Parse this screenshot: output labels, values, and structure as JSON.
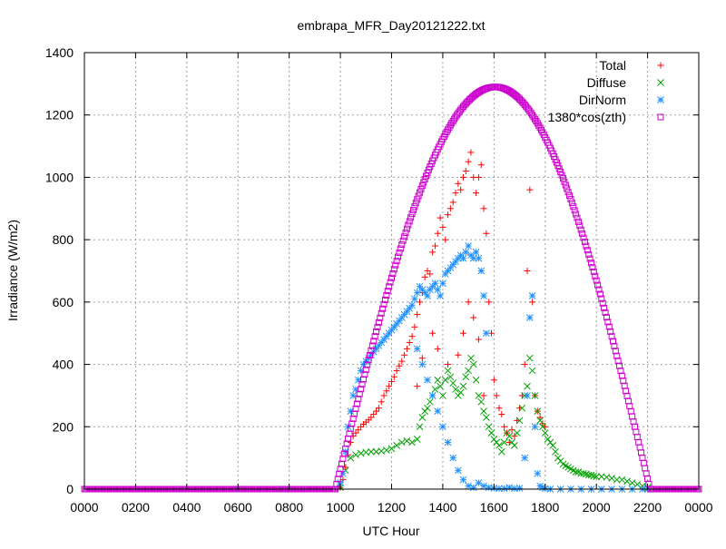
{
  "chart_data": {
    "type": "scatter",
    "title": "embrapa_MFR_Day20121222.txt",
    "xlabel": "UTC Hour",
    "ylabel": "Irradiance (W/m2)",
    "xlim": [
      0,
      2400
    ],
    "ylim": [
      0,
      1400
    ],
    "x_ticks": [
      "0000",
      "0200",
      "0400",
      "0600",
      "0800",
      "1000",
      "1200",
      "1400",
      "1600",
      "1800",
      "2000",
      "2200",
      "0000"
    ],
    "y_ticks": [
      "0",
      "200",
      "400",
      "600",
      "800",
      "1000",
      "1200",
      "1400"
    ],
    "grid": true,
    "legend_position": "top-right",
    "series": [
      {
        "name": "Total",
        "marker": "plus",
        "color": "#ff0000",
        "points": [
          [
            1000,
            5
          ],
          [
            1010,
            30
          ],
          [
            1020,
            70
          ],
          [
            1030,
            110
          ],
          [
            1040,
            150
          ],
          [
            1050,
            170
          ],
          [
            1060,
            180
          ],
          [
            1070,
            190
          ],
          [
            1080,
            200
          ],
          [
            1090,
            208
          ],
          [
            1100,
            215
          ],
          [
            1110,
            222
          ],
          [
            1120,
            230
          ],
          [
            1130,
            240
          ],
          [
            1140,
            250
          ],
          [
            1150,
            260
          ],
          [
            1160,
            280
          ],
          [
            1170,
            300
          ],
          [
            1180,
            315
          ],
          [
            1190,
            330
          ],
          [
            1200,
            345
          ],
          [
            1210,
            360
          ],
          [
            1220,
            380
          ],
          [
            1230,
            395
          ],
          [
            1240,
            410
          ],
          [
            1250,
            430
          ],
          [
            1260,
            450
          ],
          [
            1270,
            470
          ],
          [
            1280,
            490
          ],
          [
            1290,
            520
          ],
          [
            1300,
            560
          ],
          [
            1310,
            600
          ],
          [
            1320,
            630
          ],
          [
            1330,
            680
          ],
          [
            1340,
            700
          ],
          [
            1350,
            690
          ],
          [
            1360,
            760
          ],
          [
            1370,
            780
          ],
          [
            1380,
            820
          ],
          [
            1390,
            870
          ],
          [
            1400,
            840
          ],
          [
            1410,
            800
          ],
          [
            1420,
            880
          ],
          [
            1430,
            900
          ],
          [
            1440,
            920
          ],
          [
            1450,
            950
          ],
          [
            1460,
            980
          ],
          [
            1470,
            960
          ],
          [
            1480,
            1000
          ],
          [
            1490,
            1020
          ],
          [
            1500,
            1050
          ],
          [
            1510,
            1080
          ],
          [
            1520,
            1000
          ],
          [
            1530,
            950
          ],
          [
            1540,
            1000
          ],
          [
            1550,
            1040
          ],
          [
            1560,
            900
          ],
          [
            1570,
            820
          ],
          [
            1580,
            600
          ],
          [
            1590,
            500
          ],
          [
            1600,
            350
          ],
          [
            1610,
            300
          ],
          [
            1620,
            260
          ],
          [
            1630,
            240
          ],
          [
            1640,
            200
          ],
          [
            1650,
            180
          ],
          [
            1660,
            150
          ],
          [
            1670,
            190
          ],
          [
            1680,
            170
          ],
          [
            1690,
            220
          ],
          [
            1700,
            260
          ],
          [
            1710,
            300
          ],
          [
            1720,
            400
          ],
          [
            1730,
            700
          ],
          [
            1740,
            960
          ],
          [
            1750,
            600
          ],
          [
            1760,
            300
          ],
          [
            1770,
            250
          ],
          [
            1780,
            230
          ],
          [
            1790,
            210
          ],
          [
            1800,
            200
          ],
          [
            1300,
            330
          ],
          [
            1320,
            420
          ],
          [
            1360,
            500
          ],
          [
            1380,
            450
          ],
          [
            1420,
            400
          ],
          [
            1460,
            430
          ],
          [
            1480,
            500
          ],
          [
            1500,
            600
          ],
          [
            1520,
            550
          ],
          [
            1540,
            480
          ],
          [
            1560,
            300
          ]
        ]
      },
      {
        "name": "Diffuse",
        "marker": "cross",
        "color": "#00a000",
        "points": [
          [
            1000,
            5
          ],
          [
            1020,
            60
          ],
          [
            1040,
            100
          ],
          [
            1060,
            110
          ],
          [
            1080,
            115
          ],
          [
            1100,
            118
          ],
          [
            1120,
            120
          ],
          [
            1140,
            120
          ],
          [
            1160,
            122
          ],
          [
            1180,
            125
          ],
          [
            1200,
            130
          ],
          [
            1220,
            140
          ],
          [
            1240,
            150
          ],
          [
            1260,
            155
          ],
          [
            1280,
            150
          ],
          [
            1300,
            160
          ],
          [
            1310,
            200
          ],
          [
            1320,
            230
          ],
          [
            1330,
            250
          ],
          [
            1340,
            260
          ],
          [
            1350,
            280
          ],
          [
            1360,
            300
          ],
          [
            1370,
            320
          ],
          [
            1380,
            350
          ],
          [
            1390,
            330
          ],
          [
            1400,
            300
          ],
          [
            1410,
            350
          ],
          [
            1420,
            380
          ],
          [
            1430,
            360
          ],
          [
            1440,
            340
          ],
          [
            1450,
            320
          ],
          [
            1460,
            300
          ],
          [
            1470,
            310
          ],
          [
            1480,
            330
          ],
          [
            1490,
            360
          ],
          [
            1500,
            380
          ],
          [
            1510,
            420
          ],
          [
            1520,
            400
          ],
          [
            1530,
            350
          ],
          [
            1540,
            300
          ],
          [
            1550,
            280
          ],
          [
            1560,
            250
          ],
          [
            1570,
            230
          ],
          [
            1580,
            200
          ],
          [
            1590,
            180
          ],
          [
            1600,
            160
          ],
          [
            1610,
            150
          ],
          [
            1620,
            140
          ],
          [
            1630,
            120
          ],
          [
            1640,
            150
          ],
          [
            1650,
            180
          ],
          [
            1660,
            170
          ],
          [
            1670,
            150
          ],
          [
            1680,
            140
          ],
          [
            1690,
            180
          ],
          [
            1700,
            220
          ],
          [
            1710,
            260
          ],
          [
            1720,
            300
          ],
          [
            1730,
            330
          ],
          [
            1740,
            420
          ],
          [
            1750,
            380
          ],
          [
            1760,
            300
          ],
          [
            1770,
            250
          ],
          [
            1780,
            220
          ],
          [
            1790,
            200
          ],
          [
            1800,
            180
          ],
          [
            1810,
            160
          ],
          [
            1820,
            150
          ],
          [
            1830,
            140
          ],
          [
            1840,
            120
          ],
          [
            1850,
            100
          ],
          [
            1860,
            90
          ],
          [
            1870,
            80
          ],
          [
            1880,
            75
          ],
          [
            1890,
            70
          ],
          [
            1900,
            65
          ],
          [
            1910,
            60
          ],
          [
            1920,
            55
          ],
          [
            1930,
            55
          ],
          [
            1940,
            50
          ],
          [
            1950,
            50
          ],
          [
            1960,
            48
          ],
          [
            1970,
            45
          ],
          [
            1980,
            45
          ],
          [
            1990,
            42
          ],
          [
            2000,
            40
          ],
          [
            2020,
            40
          ],
          [
            2040,
            38
          ],
          [
            2060,
            35
          ],
          [
            2080,
            30
          ],
          [
            2100,
            30
          ],
          [
            2120,
            25
          ],
          [
            2140,
            20
          ],
          [
            2160,
            15
          ],
          [
            2180,
            10
          ],
          [
            2200,
            5
          ]
        ]
      },
      {
        "name": "DirNorm",
        "marker": "star",
        "color": "#1e90ff",
        "points": [
          [
            1000,
            20
          ],
          [
            1010,
            50
          ],
          [
            1020,
            120
          ],
          [
            1030,
            200
          ],
          [
            1040,
            250
          ],
          [
            1050,
            300
          ],
          [
            1060,
            320
          ],
          [
            1070,
            350
          ],
          [
            1080,
            380
          ],
          [
            1090,
            400
          ],
          [
            1100,
            410
          ],
          [
            1110,
            420
          ],
          [
            1120,
            430
          ],
          [
            1130,
            440
          ],
          [
            1140,
            450
          ],
          [
            1150,
            460
          ],
          [
            1160,
            470
          ],
          [
            1170,
            480
          ],
          [
            1180,
            490
          ],
          [
            1190,
            500
          ],
          [
            1200,
            510
          ],
          [
            1210,
            520
          ],
          [
            1220,
            530
          ],
          [
            1230,
            540
          ],
          [
            1240,
            550
          ],
          [
            1250,
            560
          ],
          [
            1260,
            570
          ],
          [
            1270,
            580
          ],
          [
            1280,
            590
          ],
          [
            1290,
            610
          ],
          [
            1300,
            630
          ],
          [
            1310,
            650
          ],
          [
            1320,
            640
          ],
          [
            1330,
            630
          ],
          [
            1340,
            620
          ],
          [
            1350,
            640
          ],
          [
            1360,
            650
          ],
          [
            1370,
            660
          ],
          [
            1380,
            640
          ],
          [
            1390,
            620
          ],
          [
            1400,
            660
          ],
          [
            1410,
            690
          ],
          [
            1420,
            700
          ],
          [
            1430,
            710
          ],
          [
            1440,
            720
          ],
          [
            1450,
            730
          ],
          [
            1460,
            740
          ],
          [
            1470,
            750
          ],
          [
            1480,
            740
          ],
          [
            1490,
            760
          ],
          [
            1500,
            780
          ],
          [
            1510,
            750
          ],
          [
            1520,
            740
          ],
          [
            1530,
            760
          ],
          [
            1540,
            740
          ],
          [
            1550,
            700
          ],
          [
            1560,
            620
          ],
          [
            1570,
            500
          ],
          [
            1300,
            450
          ],
          [
            1320,
            400
          ],
          [
            1340,
            350
          ],
          [
            1360,
            300
          ],
          [
            1380,
            250
          ],
          [
            1400,
            200
          ],
          [
            1420,
            150
          ],
          [
            1440,
            100
          ],
          [
            1460,
            60
          ],
          [
            1480,
            30
          ],
          [
            1500,
            10
          ],
          [
            1520,
            5
          ],
          [
            1540,
            20
          ],
          [
            1560,
            10
          ],
          [
            1580,
            5
          ],
          [
            1600,
            3
          ],
          [
            1620,
            2
          ],
          [
            1640,
            2
          ],
          [
            1660,
            5
          ],
          [
            1680,
            2
          ],
          [
            1700,
            3
          ],
          [
            1720,
            100
          ],
          [
            1730,
            300
          ],
          [
            1740,
            550
          ],
          [
            1750,
            620
          ],
          [
            1760,
            200
          ],
          [
            1770,
            50
          ],
          [
            1780,
            10
          ],
          [
            1790,
            5
          ],
          [
            1800,
            2
          ],
          [
            1820,
            0
          ],
          [
            1860,
            0
          ],
          [
            1900,
            0
          ],
          [
            1940,
            0
          ],
          [
            1980,
            0
          ],
          [
            2020,
            0
          ],
          [
            2060,
            0
          ],
          [
            2100,
            0
          ],
          [
            2140,
            0
          ],
          [
            2180,
            0
          ],
          [
            2200,
            0
          ]
        ]
      },
      {
        "name": "1380*cos(zth)",
        "marker": "square",
        "color": "#cc00cc",
        "curve": {
          "from": 0,
          "to": 2400,
          "step": 5,
          "rise": 980,
          "set": 2210,
          "peak_x": 1605,
          "peak_value": 1290
        }
      }
    ]
  }
}
